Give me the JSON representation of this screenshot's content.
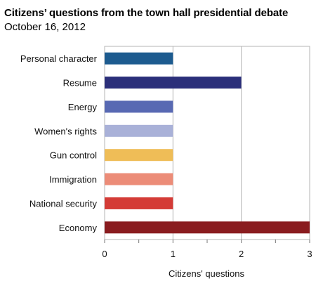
{
  "chart_data": {
    "type": "bar",
    "orientation": "horizontal",
    "title": "Citizens’ questions from the town hall presidential debate",
    "subtitle": "October 16, 2012",
    "categories": [
      "Personal character",
      "Resume",
      "Energy",
      "Women's rights",
      "Gun control",
      "Immigration",
      "National security",
      "Economy"
    ],
    "values": [
      1,
      2,
      1,
      1,
      1,
      1,
      1,
      3
    ],
    "colors": [
      "#1d5b8f",
      "#2b2f7a",
      "#5869b3",
      "#a9b1d8",
      "#efbd57",
      "#ec8c78",
      "#d43b36",
      "#8a1c1f"
    ],
    "xlabel": "Citizens' questions",
    "ylabel": "",
    "xlim": [
      0,
      3
    ],
    "xticks": [
      0,
      1,
      2,
      3
    ],
    "grid": "vertical"
  }
}
